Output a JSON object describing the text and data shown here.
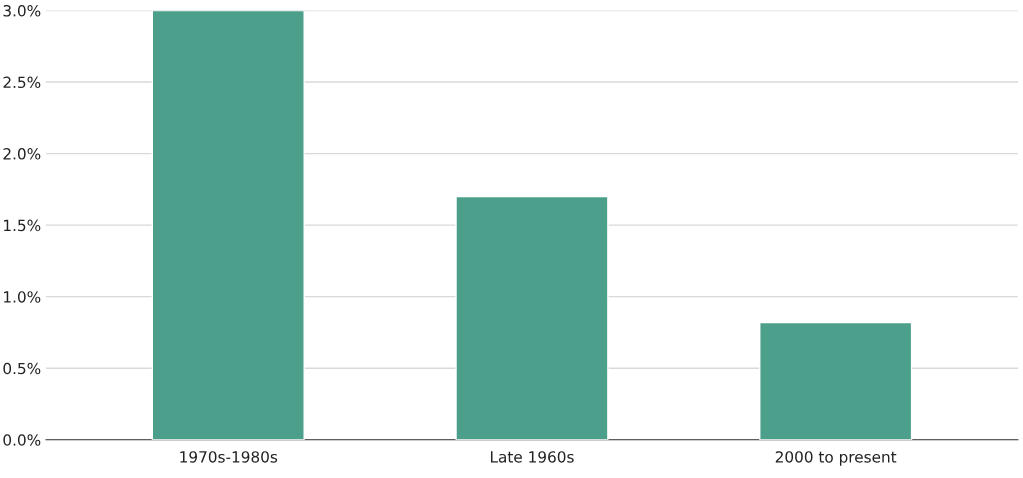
{
  "chart_data": {
    "type": "bar",
    "categories": [
      "1970s-1980s",
      "Late 1960s",
      "2000 to present"
    ],
    "values": [
      3.0,
      1.7,
      0.82
    ],
    "color": "#4c9f8a",
    "ylim": [
      0,
      3.0
    ],
    "yticks": [
      {
        "value": 0,
        "label": "0.0%"
      },
      {
        "value": 0.5,
        "label": "0.5%"
      },
      {
        "value": 1.0,
        "label": "1.0%"
      },
      {
        "value": 1.5,
        "label": "1.5%"
      },
      {
        "value": 2.0,
        "label": "2.0%"
      },
      {
        "value": 2.5,
        "label": "2.5%"
      },
      {
        "value": 3.0,
        "label": "3.0%"
      }
    ],
    "grid": "y"
  }
}
